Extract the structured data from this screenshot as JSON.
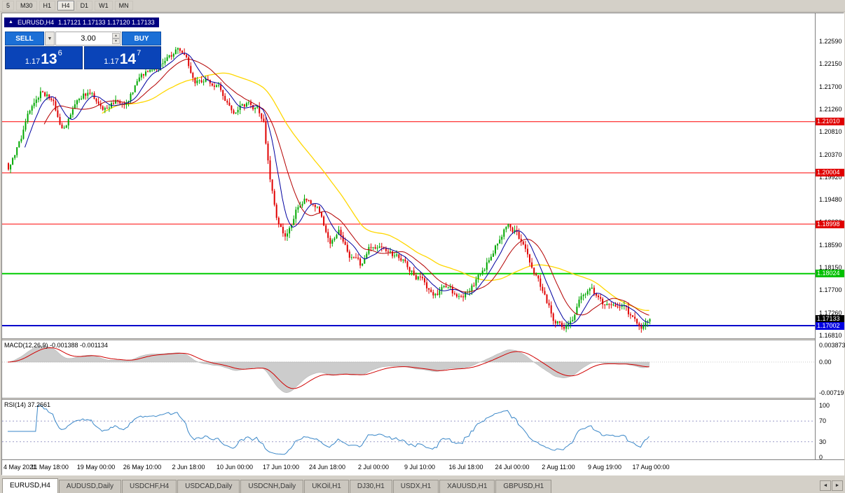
{
  "app": {
    "background": "#d4d0c8"
  },
  "toolbar": {
    "timeframes": [
      "5",
      "M30",
      "H1",
      "H4",
      "D1",
      "W1",
      "MN"
    ],
    "active": "H4"
  },
  "chart_header": {
    "arrow": "▲",
    "symbol": "EURUSD,H4",
    "ohlc": "1.17121 1.17133 1.17120 1.17133"
  },
  "trade_panel": {
    "sell_label": "SELL",
    "buy_label": "BUY",
    "volume": "3.00",
    "dropdown_icon": "▼",
    "spin_up_icon": "▲",
    "spin_down_icon": "▼",
    "sell_price": {
      "prefix": "1.17",
      "big": "13",
      "sup": "6"
    },
    "buy_price": {
      "prefix": "1.17",
      "big": "14",
      "sup": "7"
    },
    "button_color": "#1b6fd6",
    "price_box_color": "#0a44b8"
  },
  "price_scale": {
    "ticks": [
      "1.22590",
      "1.22150",
      "1.21700",
      "1.21260",
      "1.20810",
      "1.20370",
      "1.19920",
      "1.19480",
      "1.19030",
      "1.18590",
      "1.18150",
      "1.17700",
      "1.17260",
      "1.16810"
    ],
    "markers": [
      {
        "label": "1.21010",
        "price": 1.2101,
        "color": "#e00000"
      },
      {
        "label": "1.20004",
        "price": 1.20004,
        "color": "#e00000"
      },
      {
        "label": "1.18998",
        "price": 1.18998,
        "color": "#e00000"
      },
      {
        "label": "1.18024",
        "price": 1.18024,
        "color": "#00c000"
      },
      {
        "label": "1.17133",
        "price": 1.17133,
        "color": "#000000"
      },
      {
        "label": "1.17002",
        "price": 1.17002,
        "color": "#0000e0"
      }
    ]
  },
  "indicators": {
    "macd": {
      "label": "MACD(12,26,9) -0.001388 -0.001134",
      "scale": [
        "0.003873",
        "0.00",
        "-0.00719"
      ]
    },
    "rsi": {
      "label": "RSI(14) 37.2661",
      "scale": [
        "100",
        "70",
        "30",
        "0"
      ]
    }
  },
  "time_axis": [
    "4 May 2021",
    "11 May 18:00",
    "19 May 00:00",
    "26 May 10:00",
    "2 Jun 18:00",
    "10 Jun 00:00",
    "17 Jun 10:00",
    "24 Jun 18:00",
    "2 Jul 00:00",
    "9 Jul 10:00",
    "16 Jul 18:00",
    "24 Jul 00:00",
    "2 Aug 11:00",
    "9 Aug 19:00",
    "17 Aug 00:00"
  ],
  "tabs": {
    "items": [
      "EURUSD,H4",
      "AUDUSD,Daily",
      "USDCHF,H4",
      "USDCAD,Daily",
      "USDCNH,Daily",
      "UKOil,H1",
      "DJ30,H1",
      "USDX,H1",
      "XAUUSD,H1",
      "GBPUSD,H1"
    ],
    "active": 0,
    "nav_icons": [
      "◄",
      "►"
    ]
  },
  "chart_data": {
    "type": "candlestick",
    "symbol": "EURUSD",
    "timeframe": "H4",
    "title": "EURUSD,H4",
    "y_axis": {
      "min": 1.1681,
      "max": 1.2259
    },
    "last_price": 1.17133,
    "candle_count": 300,
    "price_anchors": [
      [
        0,
        1.2005
      ],
      [
        0.012,
        1.204
      ],
      [
        0.03,
        1.211
      ],
      [
        0.05,
        1.2155
      ],
      [
        0.068,
        1.215
      ],
      [
        0.085,
        1.2085
      ],
      [
        0.105,
        1.214
      ],
      [
        0.125,
        1.216
      ],
      [
        0.145,
        1.2128
      ],
      [
        0.165,
        1.214
      ],
      [
        0.185,
        1.2135
      ],
      [
        0.205,
        1.2195
      ],
      [
        0.225,
        1.221
      ],
      [
        0.245,
        1.2218
      ],
      [
        0.262,
        1.2242
      ],
      [
        0.278,
        1.2215
      ],
      [
        0.292,
        1.2175
      ],
      [
        0.31,
        1.219
      ],
      [
        0.33,
        1.2165
      ],
      [
        0.35,
        1.2118
      ],
      [
        0.368,
        1.2135
      ],
      [
        0.388,
        1.2128
      ],
      [
        0.398,
        1.2095
      ],
      [
        0.408,
        1.1985
      ],
      [
        0.42,
        1.1905
      ],
      [
        0.432,
        1.1878
      ],
      [
        0.448,
        1.1925
      ],
      [
        0.465,
        1.195
      ],
      [
        0.482,
        1.1938
      ],
      [
        0.5,
        1.1862
      ],
      [
        0.515,
        1.1888
      ],
      [
        0.532,
        1.184
      ],
      [
        0.548,
        1.1818
      ],
      [
        0.565,
        1.1855
      ],
      [
        0.582,
        1.1862
      ],
      [
        0.6,
        1.1838
      ],
      [
        0.618,
        1.1822
      ],
      [
        0.635,
        1.18
      ],
      [
        0.652,
        1.1778
      ],
      [
        0.668,
        1.1758
      ],
      [
        0.684,
        1.1782
      ],
      [
        0.7,
        1.1755
      ],
      [
        0.716,
        1.1768
      ],
      [
        0.732,
        1.1792
      ],
      [
        0.748,
        1.1828
      ],
      [
        0.764,
        1.1872
      ],
      [
        0.778,
        1.1897
      ],
      [
        0.792,
        1.1882
      ],
      [
        0.806,
        1.1852
      ],
      [
        0.82,
        1.1802
      ],
      [
        0.835,
        1.176
      ],
      [
        0.85,
        1.1716
      ],
      [
        0.865,
        1.1698
      ],
      [
        0.88,
        1.1708
      ],
      [
        0.895,
        1.1762
      ],
      [
        0.91,
        1.1772
      ],
      [
        0.925,
        1.1748
      ],
      [
        0.94,
        1.173
      ],
      [
        0.955,
        1.1746
      ],
      [
        0.97,
        1.1718
      ],
      [
        0.985,
        1.1688
      ],
      [
        1,
        1.17133
      ]
    ],
    "levels": [
      {
        "price": 1.2101,
        "color": "#ff0000",
        "width": 1
      },
      {
        "price": 1.20004,
        "color": "#ff0000",
        "width": 1
      },
      {
        "price": 1.18998,
        "color": "#ff0000",
        "width": 1
      },
      {
        "price": 1.18024,
        "color": "#00cc00",
        "width": 2
      },
      {
        "price": 1.17002,
        "color": "#0000cc",
        "width": 2
      }
    ],
    "colors": {
      "up": "#00a800",
      "down": "#e00000",
      "ma_fast": "#0000a0",
      "ma_mid": "#b40000",
      "ma_slow": "#ffd700",
      "macd_area": "#cccccc",
      "macd_signal": "#d00000",
      "rsi_line": "#3a87c8",
      "rsi_level_dash": "#9a9ac8"
    },
    "ma_periods": {
      "fast": 9,
      "mid": 18,
      "slow": 45
    },
    "macd": {
      "fast": 12,
      "slow": 26,
      "signal_period": 9,
      "scale_max": 0.003873,
      "scale_min": -0.00719
    },
    "rsi": {
      "period": 14,
      "levels": [
        70,
        30
      ],
      "range": [
        0,
        100
      ]
    }
  }
}
